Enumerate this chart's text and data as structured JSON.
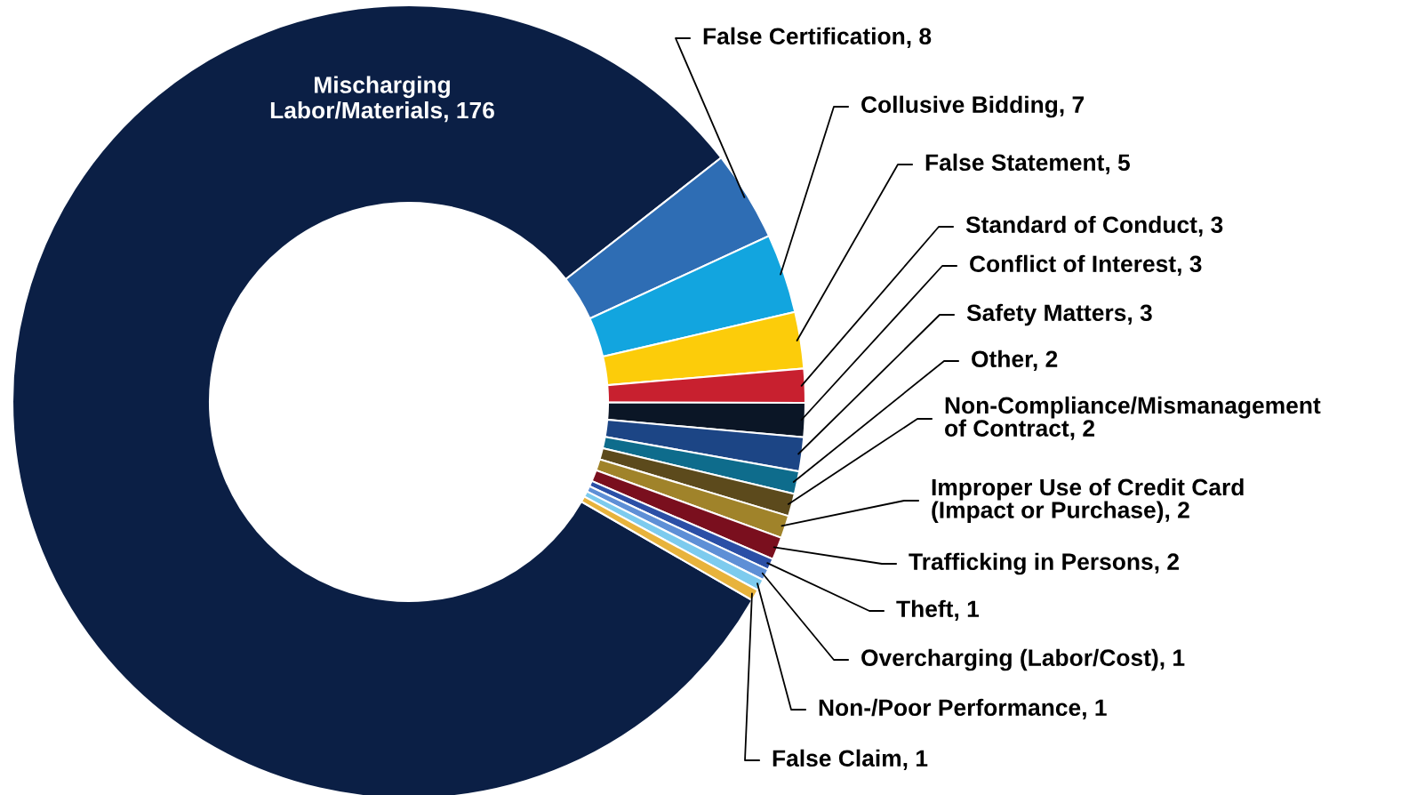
{
  "chart_data": {
    "type": "donut",
    "categories": [
      "Mischarging\nLabor/Materials, 176",
      "False Certification, 8",
      "Collusive Bidding, 7",
      "False Statement, 5",
      "Standard of Conduct, 3",
      "Conflict of Interest, 3",
      "Safety Matters, 3",
      "Other, 2",
      "Non-Compliance/Mismanagement\nof Contract, 2",
      "Improper Use of Credit Card\n(Impact or Purchase), 2",
      "Trafficking in Persons, 2",
      "Theft, 1",
      "Overcharging (Labor/Cost), 1",
      "Non-/Poor Performance, 1",
      "False Claim, 1"
    ],
    "values": [
      176,
      8,
      7,
      5,
      3,
      3,
      3,
      2,
      2,
      2,
      2,
      1,
      1,
      1,
      1
    ],
    "colors": [
      "#0b1f45",
      "#2e6db4",
      "#12a5df",
      "#fccc0a",
      "#c8202f",
      "#0b1626",
      "#1c4585",
      "#0e6c8c",
      "#5c4a1c",
      "#a0832a",
      "#7a0f1e",
      "#2b4fa6",
      "#5e8fd6",
      "#7dcbee",
      "#e8b33c"
    ]
  }
}
